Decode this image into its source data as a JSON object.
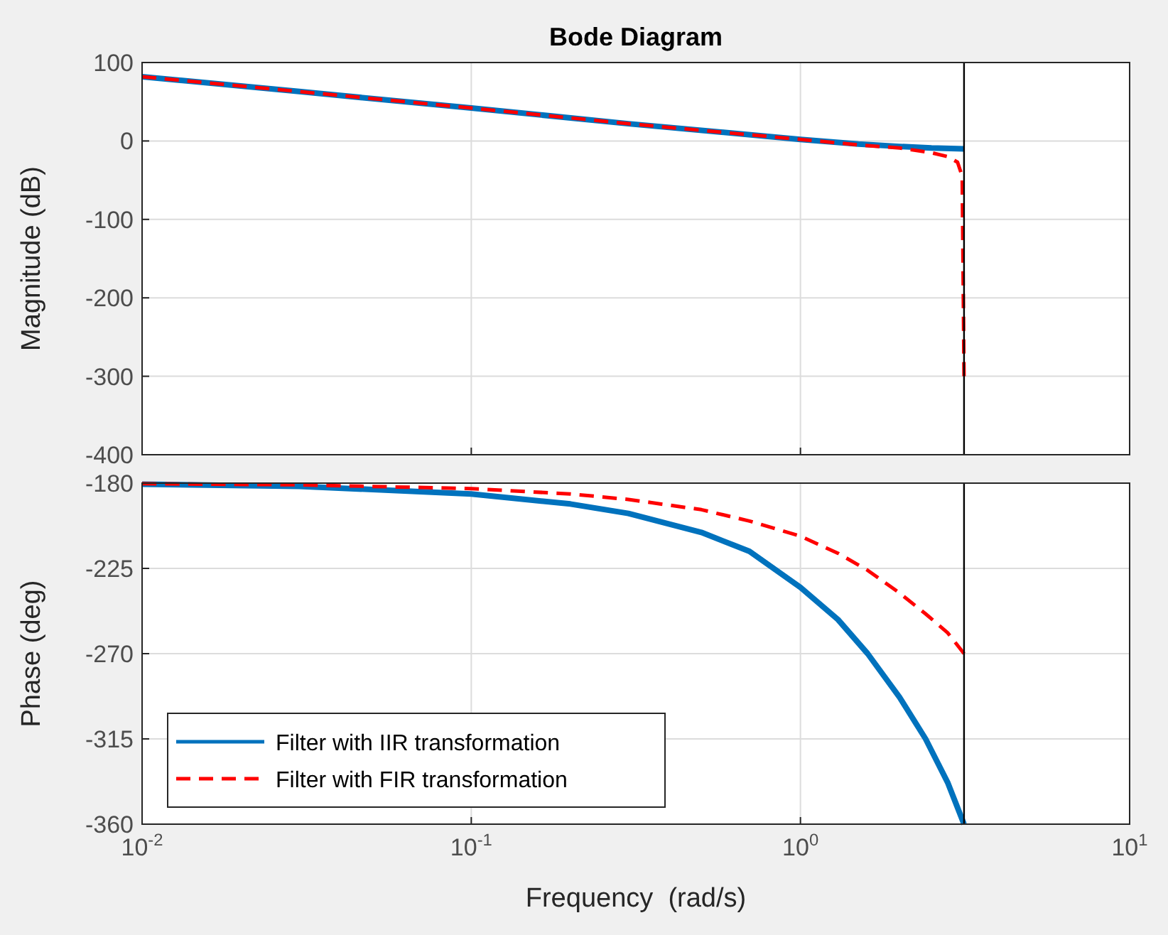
{
  "chart_data": [
    {
      "type": "line",
      "title": "Bode Diagram",
      "ylabel": "Magnitude (dB)",
      "log": "x",
      "grid": true,
      "tick_labels": "y",
      "xlim": [
        0.01,
        10
      ],
      "xticks": [
        0.01,
        0.1,
        1,
        10
      ],
      "ylim": [
        -400,
        100
      ],
      "yticks": [
        -400,
        -300,
        -200,
        -100,
        0,
        100
      ],
      "ref_lines": [
        {
          "axis": "x",
          "value": 3.14,
          "color": "#000000"
        }
      ],
      "series": [
        {
          "color": "#0072bd",
          "line_style": "solid",
          "x": [
            0.01,
            0.03,
            0.1,
            0.3,
            1,
            1.5,
            2,
            2.5,
            3.14
          ],
          "values": [
            82,
            63,
            42,
            22,
            2,
            -4,
            -7,
            -9,
            -10
          ]
        },
        {
          "color": "#ff0000",
          "line_style": "dashed",
          "x": [
            0.01,
            0.03,
            0.1,
            0.3,
            1,
            1.5,
            2,
            2.5,
            2.8,
            3.0,
            3.1,
            3.14
          ],
          "values": [
            82,
            63,
            42,
            22,
            2,
            -5,
            -9,
            -15,
            -20,
            -27,
            -45,
            -300
          ]
        }
      ]
    },
    {
      "type": "line",
      "xlabel": "Frequency  (rad/s)",
      "ylabel": "Phase (deg)",
      "log": "x",
      "grid": true,
      "legend": "bottom left",
      "xlim": [
        0.01,
        10
      ],
      "xticks": [
        {
          "value": 0.01,
          "label": "10$^{-2}$"
        },
        {
          "value": 0.1,
          "label": "10$^{-1}$"
        },
        {
          "value": 1,
          "label": "10$^{0}$"
        },
        {
          "value": 10,
          "label": "10$^{1}$"
        }
      ],
      "ylim": [
        -360,
        -180
      ],
      "yticks": [
        -360,
        -315,
        -270,
        -225,
        -180
      ],
      "ref_lines": [
        {
          "axis": "x",
          "value": 3.14,
          "color": "#000000"
        }
      ],
      "series": [
        {
          "name": "Filter with IIR transformation",
          "color": "#0072bd",
          "line_style": "solid",
          "x": [
            0.01,
            0.03,
            0.1,
            0.2,
            0.3,
            0.5,
            0.7,
            1,
            1.3,
            1.6,
            2,
            2.4,
            2.8,
            3.14
          ],
          "values": [
            -180.6,
            -181.7,
            -185.7,
            -191,
            -196,
            -206,
            -216,
            -235,
            -252,
            -270,
            -293,
            -315,
            -338,
            -360
          ]
        },
        {
          "name": "Filter with FIR transformation",
          "color": "#ff0000",
          "line_style": "dashed",
          "x": [
            0.01,
            0.03,
            0.1,
            0.2,
            0.3,
            0.5,
            0.7,
            1,
            1.3,
            1.6,
            2,
            2.4,
            2.8,
            3.14
          ],
          "values": [
            -180.3,
            -180.9,
            -182.9,
            -185.7,
            -188.6,
            -194,
            -200,
            -208,
            -217,
            -226,
            -238,
            -249,
            -259,
            -270
          ]
        }
      ]
    }
  ]
}
